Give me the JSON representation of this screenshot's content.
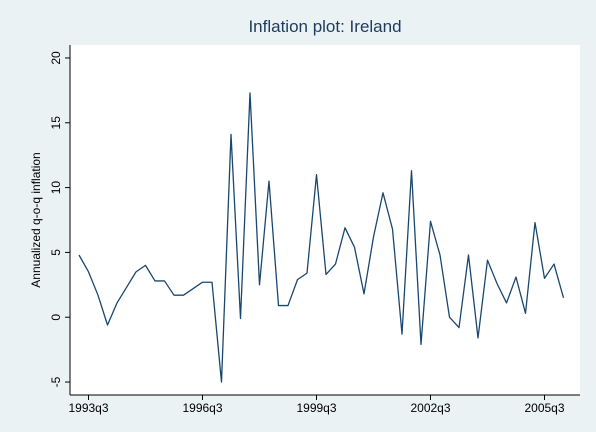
{
  "chart_data": {
    "type": "line",
    "title": "Inflation plot: Ireland",
    "y_label": "Annualized q-o-q inflation",
    "x": [
      "1993q2",
      "1993q3",
      "1993q4",
      "1994q1",
      "1994q2",
      "1994q3",
      "1994q4",
      "1995q1",
      "1995q2",
      "1995q3",
      "1995q4",
      "1996q1",
      "1996q2",
      "1996q3",
      "1996q4",
      "1997q1",
      "1997q2",
      "1997q3",
      "1997q4",
      "1998q1",
      "1998q2",
      "1998q3",
      "1998q4",
      "1999q1",
      "1999q2",
      "1999q3",
      "1999q4",
      "2000q1",
      "2000q2",
      "2000q3",
      "2000q4",
      "2001q1",
      "2001q2",
      "2001q3",
      "2001q4",
      "2002q1",
      "2002q2",
      "2002q3",
      "2002q4",
      "2003q1",
      "2003q2",
      "2003q3",
      "2003q4",
      "2004q1",
      "2004q2",
      "2004q3",
      "2004q4",
      "2005q1",
      "2005q2",
      "2005q3",
      "2005q4",
      "2006q1"
    ],
    "series": [
      {
        "name": "Annualized q-o-q inflation",
        "color": "#1a476f",
        "values": [
          4.8,
          3.5,
          1.7,
          -0.6,
          1.1,
          2.3,
          3.5,
          4.0,
          2.8,
          2.8,
          1.7,
          1.7,
          2.2,
          2.7,
          2.7,
          -5.0,
          14.1,
          -0.1,
          17.3,
          2.5,
          10.5,
          0.9,
          0.9,
          2.9,
          3.4,
          11.0,
          3.3,
          4.1,
          6.9,
          5.4,
          1.8,
          6.2,
          9.6,
          6.8,
          -1.3,
          11.3,
          -2.1,
          7.4,
          4.8,
          0.0,
          -0.8,
          4.8,
          -1.6,
          4.4,
          2.6,
          1.1,
          3.1,
          0.3,
          7.3,
          3.0,
          4.1,
          1.5
        ]
      }
    ],
    "xticks": [
      "1993q3",
      "1996q3",
      "1999q3",
      "2002q3",
      "2005q3"
    ],
    "ylim": [
      -6,
      21
    ],
    "yticks": [
      -5,
      0,
      5,
      10,
      15,
      20
    ],
    "grid": false
  }
}
